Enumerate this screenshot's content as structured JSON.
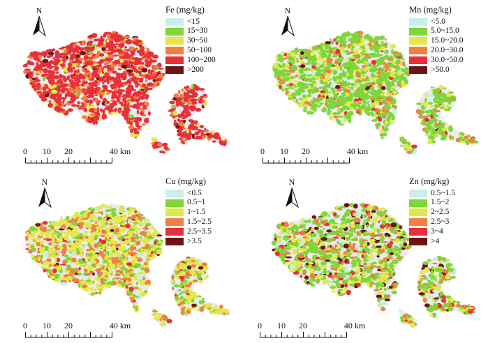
{
  "panels": [
    {
      "element": "Fe",
      "title": "Fe (mg/kg)",
      "classes": [
        {
          "label": "<15",
          "color": "#c8f0e8"
        },
        {
          "label": "15~30",
          "color": "#7fd63a"
        },
        {
          "label": "30~50",
          "color": "#e3e84a"
        },
        {
          "label": "50~100",
          "color": "#f08040"
        },
        {
          "label": "100~200",
          "color": "#e8303a"
        },
        {
          "label": ">200",
          "color": "#6e1414"
        }
      ],
      "class_mix": [
        0.0,
        0.02,
        0.05,
        0.18,
        0.72,
        0.03
      ]
    },
    {
      "element": "Mn",
      "title": "Mn (mg/kg)",
      "classes": [
        {
          "label": "<5.0",
          "color": "#c8f0e8"
        },
        {
          "label": "5.0~15.0",
          "color": "#7fd63a"
        },
        {
          "label": "15.0~20.0",
          "color": "#e3e84a"
        },
        {
          "label": "20.0~30.0",
          "color": "#f08040"
        },
        {
          "label": "30.0~50.0",
          "color": "#e8303a"
        },
        {
          "label": ">50.0",
          "color": "#6e1414"
        }
      ],
      "class_mix": [
        0.02,
        0.62,
        0.2,
        0.12,
        0.03,
        0.01
      ]
    },
    {
      "element": "Cu",
      "title": "Cu (mg/kg)",
      "classes": [
        {
          "label": "<0.5",
          "color": "#c8f0e8"
        },
        {
          "label": "0.5~1",
          "color": "#7fd63a"
        },
        {
          "label": "1~1.5",
          "color": "#e3e84a"
        },
        {
          "label": "1.5~2.5",
          "color": "#f08040"
        },
        {
          "label": "2.5~3.5",
          "color": "#e8303a"
        },
        {
          "label": ">3.5",
          "color": "#6e1414"
        }
      ],
      "class_mix": [
        0.03,
        0.18,
        0.5,
        0.22,
        0.05,
        0.02
      ]
    },
    {
      "element": "Zn",
      "title": "Zn (mg/kg)",
      "classes": [
        {
          "label": "0.5~1.5",
          "color": "#c8f0e8"
        },
        {
          "label": "1.5~2",
          "color": "#7fd63a"
        },
        {
          "label": "2~2.5",
          "color": "#e3e84a"
        },
        {
          "label": "2.5~3",
          "color": "#f08040"
        },
        {
          "label": "3~4",
          "color": "#e8303a"
        },
        {
          "label": ">4",
          "color": "#6e1414"
        }
      ],
      "class_mix": [
        0.08,
        0.42,
        0.2,
        0.15,
        0.07,
        0.08
      ]
    }
  ],
  "north_label": "N",
  "scale_bar": {
    "ticks": [
      "0",
      "10",
      "20",
      "40 km"
    ]
  }
}
